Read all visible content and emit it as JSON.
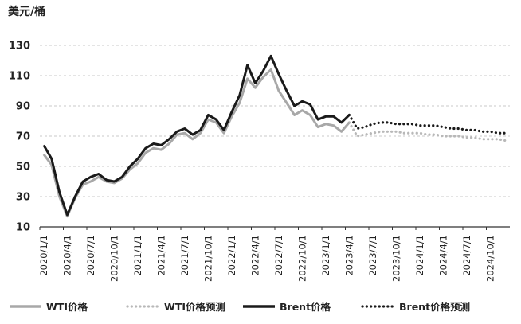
{
  "chart_data": {
    "type": "line",
    "unit_label": "美元/桶",
    "ylim": [
      10,
      130
    ],
    "yticks": [
      10,
      30,
      50,
      70,
      90,
      110,
      130
    ],
    "grid": "horizontal-dashed",
    "legend_position": "bottom",
    "xtick_labels": [
      "2020/1/1",
      "2020/4/1",
      "2020/7/1",
      "2020/10/1",
      "2021/1/1",
      "2021/4/1",
      "2021/7/1",
      "2021/10/1",
      "2022/1/1",
      "2022/4/1",
      "2022/7/1",
      "2022/10/1",
      "2023/1/1",
      "2023/4/1",
      "2023/7/1",
      "2023/10/1",
      "2024/1/1",
      "2024/4/1",
      "2024/7/1",
      "2024/10/1"
    ],
    "x": [
      "2020-01",
      "2020-02",
      "2020-03",
      "2020-04",
      "2020-05",
      "2020-06",
      "2020-07",
      "2020-08",
      "2020-09",
      "2020-10",
      "2020-11",
      "2020-12",
      "2021-01",
      "2021-02",
      "2021-03",
      "2021-04",
      "2021-05",
      "2021-06",
      "2021-07",
      "2021-08",
      "2021-09",
      "2021-10",
      "2021-11",
      "2021-12",
      "2022-01",
      "2022-02",
      "2022-03",
      "2022-04",
      "2022-05",
      "2022-06",
      "2022-07",
      "2022-08",
      "2022-09",
      "2022-10",
      "2022-11",
      "2022-12",
      "2023-01",
      "2023-02",
      "2023-03",
      "2023-04",
      "2023-05",
      "2023-06",
      "2023-07",
      "2023-08",
      "2023-09",
      "2023-10",
      "2023-11",
      "2023-12",
      "2024-01",
      "2024-02",
      "2024-03",
      "2024-04",
      "2024-05",
      "2024-06",
      "2024-07",
      "2024-08",
      "2024-09",
      "2024-10",
      "2024-11",
      "2024-12"
    ],
    "series": [
      {
        "name": "WTI价格",
        "style": "solid",
        "color": "#a8a8a8",
        "values": [
          58,
          51,
          30,
          17,
          29,
          38,
          40,
          43,
          40,
          39,
          42,
          48,
          52,
          59,
          62,
          61,
          65,
          71,
          72,
          68,
          72,
          81,
          79,
          72,
          83,
          92,
          108,
          102,
          109,
          114,
          100,
          92,
          84,
          87,
          84,
          76,
          78,
          77,
          73,
          79,
          null,
          null,
          null,
          null,
          null,
          null,
          null,
          null,
          null,
          null,
          null,
          null,
          null,
          null,
          null,
          null,
          null,
          null,
          null,
          null
        ]
      },
      {
        "name": "WTI价格预测",
        "style": "dotted",
        "color": "#b8b8b8",
        "values": [
          null,
          null,
          null,
          null,
          null,
          null,
          null,
          null,
          null,
          null,
          null,
          null,
          null,
          null,
          null,
          null,
          null,
          null,
          null,
          null,
          null,
          null,
          null,
          null,
          null,
          null,
          null,
          null,
          null,
          null,
          null,
          null,
          null,
          null,
          null,
          null,
          null,
          null,
          null,
          79,
          70,
          71,
          72,
          73,
          73,
          73,
          72,
          72,
          72,
          71,
          71,
          70,
          70,
          70,
          69,
          69,
          68,
          68,
          68,
          67
        ]
      },
      {
        "name": "Brent价格",
        "style": "solid",
        "color": "#1a1a1a",
        "values": [
          64,
          55,
          33,
          18,
          30,
          40,
          43,
          45,
          41,
          40,
          43,
          50,
          55,
          62,
          65,
          64,
          68,
          73,
          75,
          71,
          74,
          84,
          81,
          74,
          86,
          97,
          117,
          105,
          113,
          123,
          111,
          100,
          90,
          93,
          91,
          81,
          83,
          83,
          79,
          84,
          null,
          null,
          null,
          null,
          null,
          null,
          null,
          null,
          null,
          null,
          null,
          null,
          null,
          null,
          null,
          null,
          null,
          null,
          null,
          null
        ]
      },
      {
        "name": "Brent价格预测",
        "style": "dotted",
        "color": "#1a1a1a",
        "values": [
          null,
          null,
          null,
          null,
          null,
          null,
          null,
          null,
          null,
          null,
          null,
          null,
          null,
          null,
          null,
          null,
          null,
          null,
          null,
          null,
          null,
          null,
          null,
          null,
          null,
          null,
          null,
          null,
          null,
          null,
          null,
          null,
          null,
          null,
          null,
          null,
          null,
          null,
          null,
          84,
          75,
          76,
          78,
          79,
          79,
          78,
          78,
          78,
          77,
          77,
          77,
          76,
          75,
          75,
          74,
          74,
          73,
          73,
          72,
          72
        ]
      }
    ]
  }
}
